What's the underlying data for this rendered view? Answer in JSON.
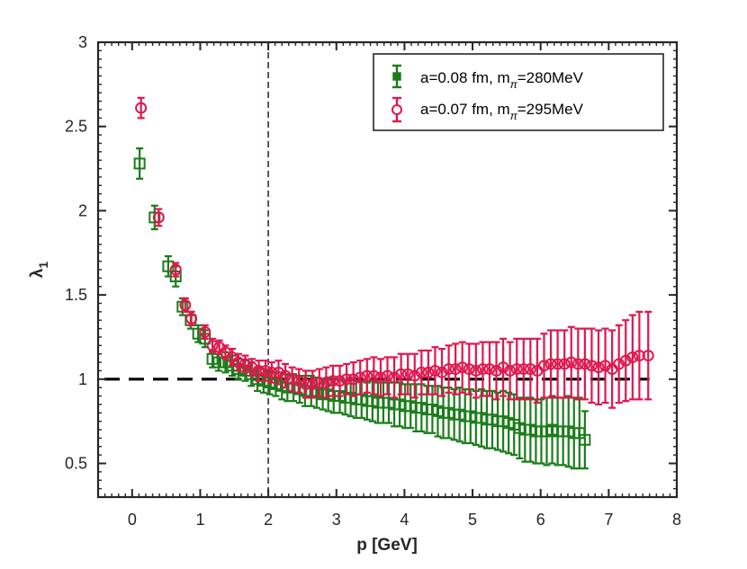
{
  "chart_data": {
    "type": "scatter",
    "xlabel": "p [GeV]",
    "ylabel": "λ",
    "ylabel_sub": "1",
    "xlim": [
      -0.5,
      8
    ],
    "ylim": [
      0.3,
      3
    ],
    "xticks": [
      0,
      1,
      2,
      3,
      4,
      5,
      6,
      7,
      8
    ],
    "yticks": [
      0.5,
      1,
      1.5,
      2,
      2.5,
      3
    ],
    "xtick_labels": [
      "0",
      "1",
      "2",
      "3",
      "4",
      "5",
      "6",
      "7",
      "8"
    ],
    "ytick_labels": [
      "0.5",
      "1",
      "1.5",
      "2",
      "2.5",
      "3"
    ],
    "reference_lines": [
      {
        "orientation": "horizontal",
        "value": 1,
        "style": "dashed",
        "color": "#000000"
      },
      {
        "orientation": "vertical",
        "value": 2,
        "style": "dashed",
        "color": "#5a3a55"
      }
    ],
    "legend_position": "top-right",
    "series": [
      {
        "name": "a=0.08 fm",
        "legend_text": "a=0.08 fm,  m",
        "legend_sub": "π",
        "legend_tail": "=280MeV",
        "marker": "square",
        "color": "#1a7d1a",
        "x": [
          0.11,
          0.33,
          0.53,
          0.64,
          0.74,
          0.86,
          0.97,
          1.07,
          1.18,
          1.27,
          1.37,
          1.47,
          1.56,
          1.66,
          1.75,
          1.84,
          1.93,
          2.02,
          2.11,
          2.2,
          2.28,
          2.37,
          2.46,
          2.54,
          2.63,
          2.71,
          2.8,
          2.88,
          2.96,
          3.05,
          3.13,
          3.21,
          3.29,
          3.37,
          3.45,
          3.53,
          3.61,
          3.69,
          3.77,
          3.85,
          3.93,
          4.01,
          4.09,
          4.17,
          4.25,
          4.33,
          4.41,
          4.49,
          4.57,
          4.65,
          4.73,
          4.81,
          4.89,
          4.97,
          5.05,
          5.13,
          5.21,
          5.29,
          5.37,
          5.45,
          5.53,
          5.61,
          5.69,
          5.77,
          5.85,
          5.93,
          6.01,
          6.09,
          6.17,
          6.25,
          6.33,
          6.41,
          6.49,
          6.57,
          6.65
        ],
        "y": [
          2.28,
          1.96,
          1.67,
          1.61,
          1.43,
          1.35,
          1.27,
          1.24,
          1.12,
          1.1,
          1.1,
          1.08,
          1.06,
          1.05,
          1.03,
          1.0,
          0.99,
          0.98,
          0.97,
          0.96,
          0.95,
          0.95,
          0.94,
          0.93,
          0.93,
          0.92,
          0.91,
          0.91,
          0.9,
          0.9,
          0.89,
          0.89,
          0.88,
          0.88,
          0.87,
          0.87,
          0.86,
          0.86,
          0.86,
          0.85,
          0.85,
          0.84,
          0.84,
          0.83,
          0.83,
          0.82,
          0.82,
          0.81,
          0.8,
          0.8,
          0.79,
          0.79,
          0.78,
          0.78,
          0.77,
          0.77,
          0.76,
          0.76,
          0.75,
          0.75,
          0.74,
          0.73,
          0.71,
          0.7,
          0.7,
          0.69,
          0.69,
          0.69,
          0.7,
          0.69,
          0.69,
          0.69,
          0.68,
          0.68,
          0.64
        ],
        "err": [
          0.09,
          0.07,
          0.06,
          0.06,
          0.05,
          0.05,
          0.05,
          0.05,
          0.05,
          0.05,
          0.06,
          0.06,
          0.06,
          0.06,
          0.07,
          0.07,
          0.07,
          0.07,
          0.07,
          0.08,
          0.08,
          0.08,
          0.08,
          0.09,
          0.09,
          0.09,
          0.09,
          0.1,
          0.1,
          0.1,
          0.1,
          0.11,
          0.11,
          0.11,
          0.11,
          0.12,
          0.12,
          0.12,
          0.12,
          0.13,
          0.13,
          0.13,
          0.13,
          0.14,
          0.14,
          0.14,
          0.14,
          0.15,
          0.15,
          0.15,
          0.15,
          0.16,
          0.16,
          0.16,
          0.16,
          0.17,
          0.17,
          0.17,
          0.17,
          0.18,
          0.18,
          0.18,
          0.18,
          0.19,
          0.19,
          0.19,
          0.19,
          0.2,
          0.2,
          0.2,
          0.2,
          0.21,
          0.21,
          0.21,
          0.17
        ]
      },
      {
        "name": "a=0.07 fm",
        "legend_text": "a=0.07 fm,  m",
        "legend_sub": "π",
        "legend_tail": "=295MeV",
        "marker": "circle",
        "color": "#e0164d",
        "x": [
          0.13,
          0.39,
          0.64,
          0.78,
          0.87,
          1.07,
          1.18,
          1.28,
          1.37,
          1.47,
          1.56,
          1.66,
          1.76,
          1.86,
          1.96,
          2.05,
          2.15,
          2.25,
          2.35,
          2.45,
          2.55,
          2.65,
          2.75,
          2.85,
          2.95,
          3.05,
          3.15,
          3.25,
          3.35,
          3.45,
          3.55,
          3.65,
          3.75,
          3.85,
          3.95,
          4.05,
          4.15,
          4.25,
          4.35,
          4.45,
          4.55,
          4.65,
          4.75,
          4.85,
          4.95,
          5.05,
          5.15,
          5.25,
          5.35,
          5.45,
          5.55,
          5.65,
          5.75,
          5.85,
          5.95,
          6.05,
          6.15,
          6.25,
          6.35,
          6.45,
          6.55,
          6.65,
          6.75,
          6.85,
          6.95,
          7.05,
          7.15,
          7.25,
          7.35,
          7.45,
          7.58
        ],
        "y": [
          2.61,
          1.96,
          1.65,
          1.44,
          1.36,
          1.28,
          1.2,
          1.19,
          1.16,
          1.13,
          1.1,
          1.09,
          1.07,
          1.05,
          1.05,
          1.04,
          1.04,
          1.02,
          1.0,
          0.99,
          0.97,
          0.97,
          0.98,
          0.98,
          0.99,
          0.99,
          1.0,
          1.0,
          1.01,
          1.02,
          1.02,
          1.01,
          1.02,
          1.01,
          1.03,
          1.03,
          1.02,
          1.04,
          1.04,
          1.05,
          1.04,
          1.06,
          1.06,
          1.07,
          1.06,
          1.05,
          1.06,
          1.06,
          1.05,
          1.07,
          1.05,
          1.06,
          1.06,
          1.06,
          1.05,
          1.08,
          1.09,
          1.09,
          1.09,
          1.1,
          1.09,
          1.09,
          1.08,
          1.07,
          1.08,
          1.06,
          1.09,
          1.11,
          1.13,
          1.14,
          1.14
        ],
        "err": [
          0.06,
          0.05,
          0.04,
          0.04,
          0.04,
          0.04,
          0.04,
          0.04,
          0.04,
          0.05,
          0.05,
          0.05,
          0.05,
          0.06,
          0.06,
          0.06,
          0.07,
          0.07,
          0.07,
          0.07,
          0.08,
          0.08,
          0.08,
          0.09,
          0.09,
          0.09,
          0.09,
          0.1,
          0.1,
          0.1,
          0.11,
          0.11,
          0.11,
          0.12,
          0.12,
          0.12,
          0.13,
          0.13,
          0.13,
          0.14,
          0.14,
          0.14,
          0.15,
          0.15,
          0.15,
          0.16,
          0.16,
          0.16,
          0.17,
          0.17,
          0.17,
          0.18,
          0.18,
          0.18,
          0.19,
          0.19,
          0.2,
          0.2,
          0.2,
          0.21,
          0.21,
          0.21,
          0.22,
          0.22,
          0.22,
          0.23,
          0.23,
          0.24,
          0.25,
          0.26,
          0.26
        ]
      }
    ]
  }
}
